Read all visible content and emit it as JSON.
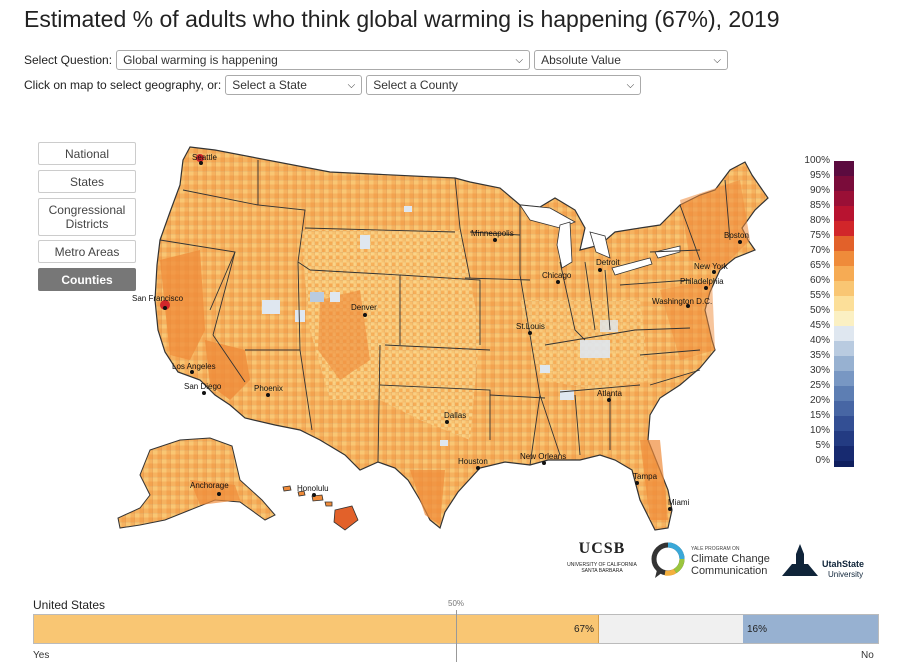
{
  "title": "Estimated % of adults who think global warming is happening (67%), 2019",
  "controls": {
    "question_label": "Select Question:",
    "question_value": "Global warming is happening",
    "mode_value": "Absolute Value",
    "geo_label": "Click on map to select geography, or:",
    "state_value": "Select a State",
    "county_value": "Select a County"
  },
  "geo_buttons": [
    {
      "label": "National",
      "active": false
    },
    {
      "label": "States",
      "active": false
    },
    {
      "label": "Congressional Districts",
      "active": false
    },
    {
      "label": "Metro Areas",
      "active": false
    },
    {
      "label": "Counties",
      "active": true
    }
  ],
  "cities": [
    "Seattle",
    "San Francisco",
    "Los Angeles",
    "San Diego",
    "Phoenix",
    "Denver",
    "Minneapolis",
    "Chicago",
    "Detroit",
    "St.Louis",
    "Dallas",
    "Houston",
    "New Orleans",
    "Atlanta",
    "Tampa",
    "Miami",
    "Washington D.C.",
    "Philadelphia",
    "New York",
    "Boston",
    "Anchorage",
    "Honolulu"
  ],
  "legend": {
    "labels": [
      "100%",
      "95%",
      "90%",
      "85%",
      "80%",
      "75%",
      "70%",
      "65%",
      "60%",
      "55%",
      "50%",
      "45%",
      "40%",
      "35%",
      "30%",
      "25%",
      "20%",
      "15%",
      "10%",
      "5%",
      "0%"
    ],
    "colors": [
      "#5b0b3f",
      "#7a0c3a",
      "#9a0f36",
      "#b81330",
      "#d1262a",
      "#e2612a",
      "#ef8b3a",
      "#f6ab54",
      "#f9c673",
      "#fcdf99",
      "#fbf0c3",
      "#dfe7f0",
      "#b9cbe0",
      "#97b1d1",
      "#7897c3",
      "#5d7eb3",
      "#4766a4",
      "#334f94",
      "#233b82",
      "#172a70",
      "#0f1f5e"
    ]
  },
  "logos": {
    "ucsb": "UCSB",
    "ucsb_sub1": "UNIVERSITY OF CALIFORNIA",
    "ucsb_sub2": "SANTA BARBARA",
    "yale_small": "YALE PROGRAM ON",
    "yale_line1": "Climate Change",
    "yale_line2": "Communication",
    "usu_line1": "UtahState",
    "usu_line2": "University"
  },
  "summary": {
    "region": "United States",
    "midpoint_label": "50%",
    "yes_pct": 67,
    "no_pct": 16,
    "yes_text": "67%",
    "no_text": "16%",
    "yes_label": "Yes",
    "no_label": "No",
    "yes_color": "#f9c673",
    "no_color": "#97b1d1"
  }
}
